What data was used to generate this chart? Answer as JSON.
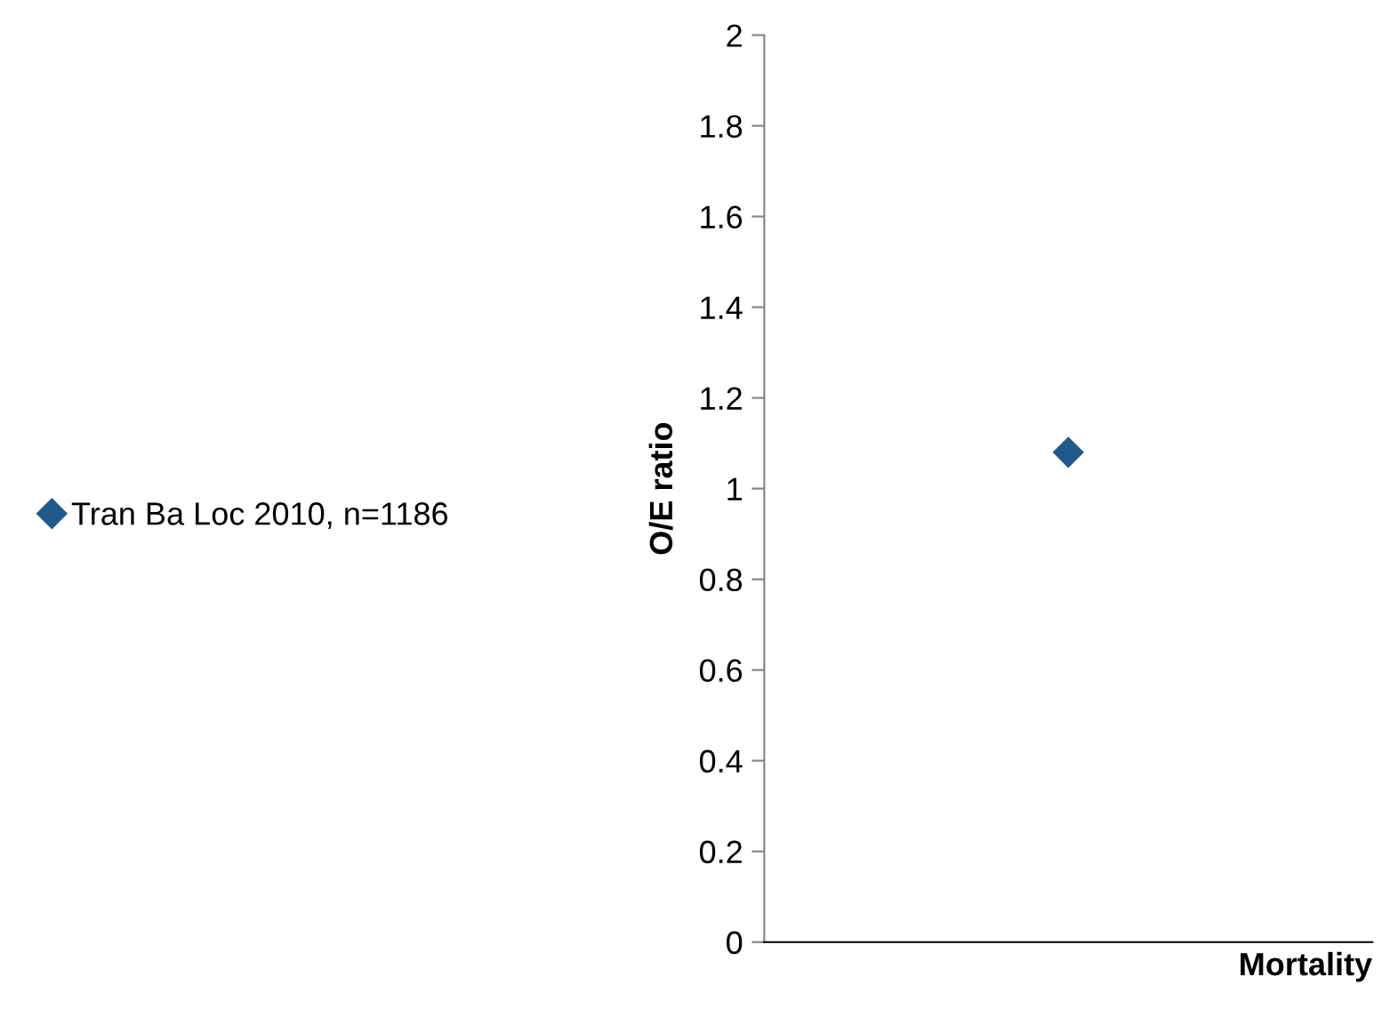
{
  "chart_data": {
    "type": "scatter",
    "categories": [
      null
    ],
    "xlabel": "Mortality",
    "ylabel": "O/E ratio",
    "series": [
      {
        "name": "Tran Ba Loc 2010, n=1186",
        "color": "#1f5a8a",
        "values": [
          1.08
        ]
      }
    ],
    "ylim": [
      0,
      2
    ],
    "yticks": [
      0,
      0.2,
      0.4,
      0.6,
      0.8,
      1,
      1.2,
      1.4,
      1.6,
      1.8,
      2
    ],
    "marker": "diamond",
    "legend": "left",
    "grid": false,
    "tick_labels": "y"
  }
}
